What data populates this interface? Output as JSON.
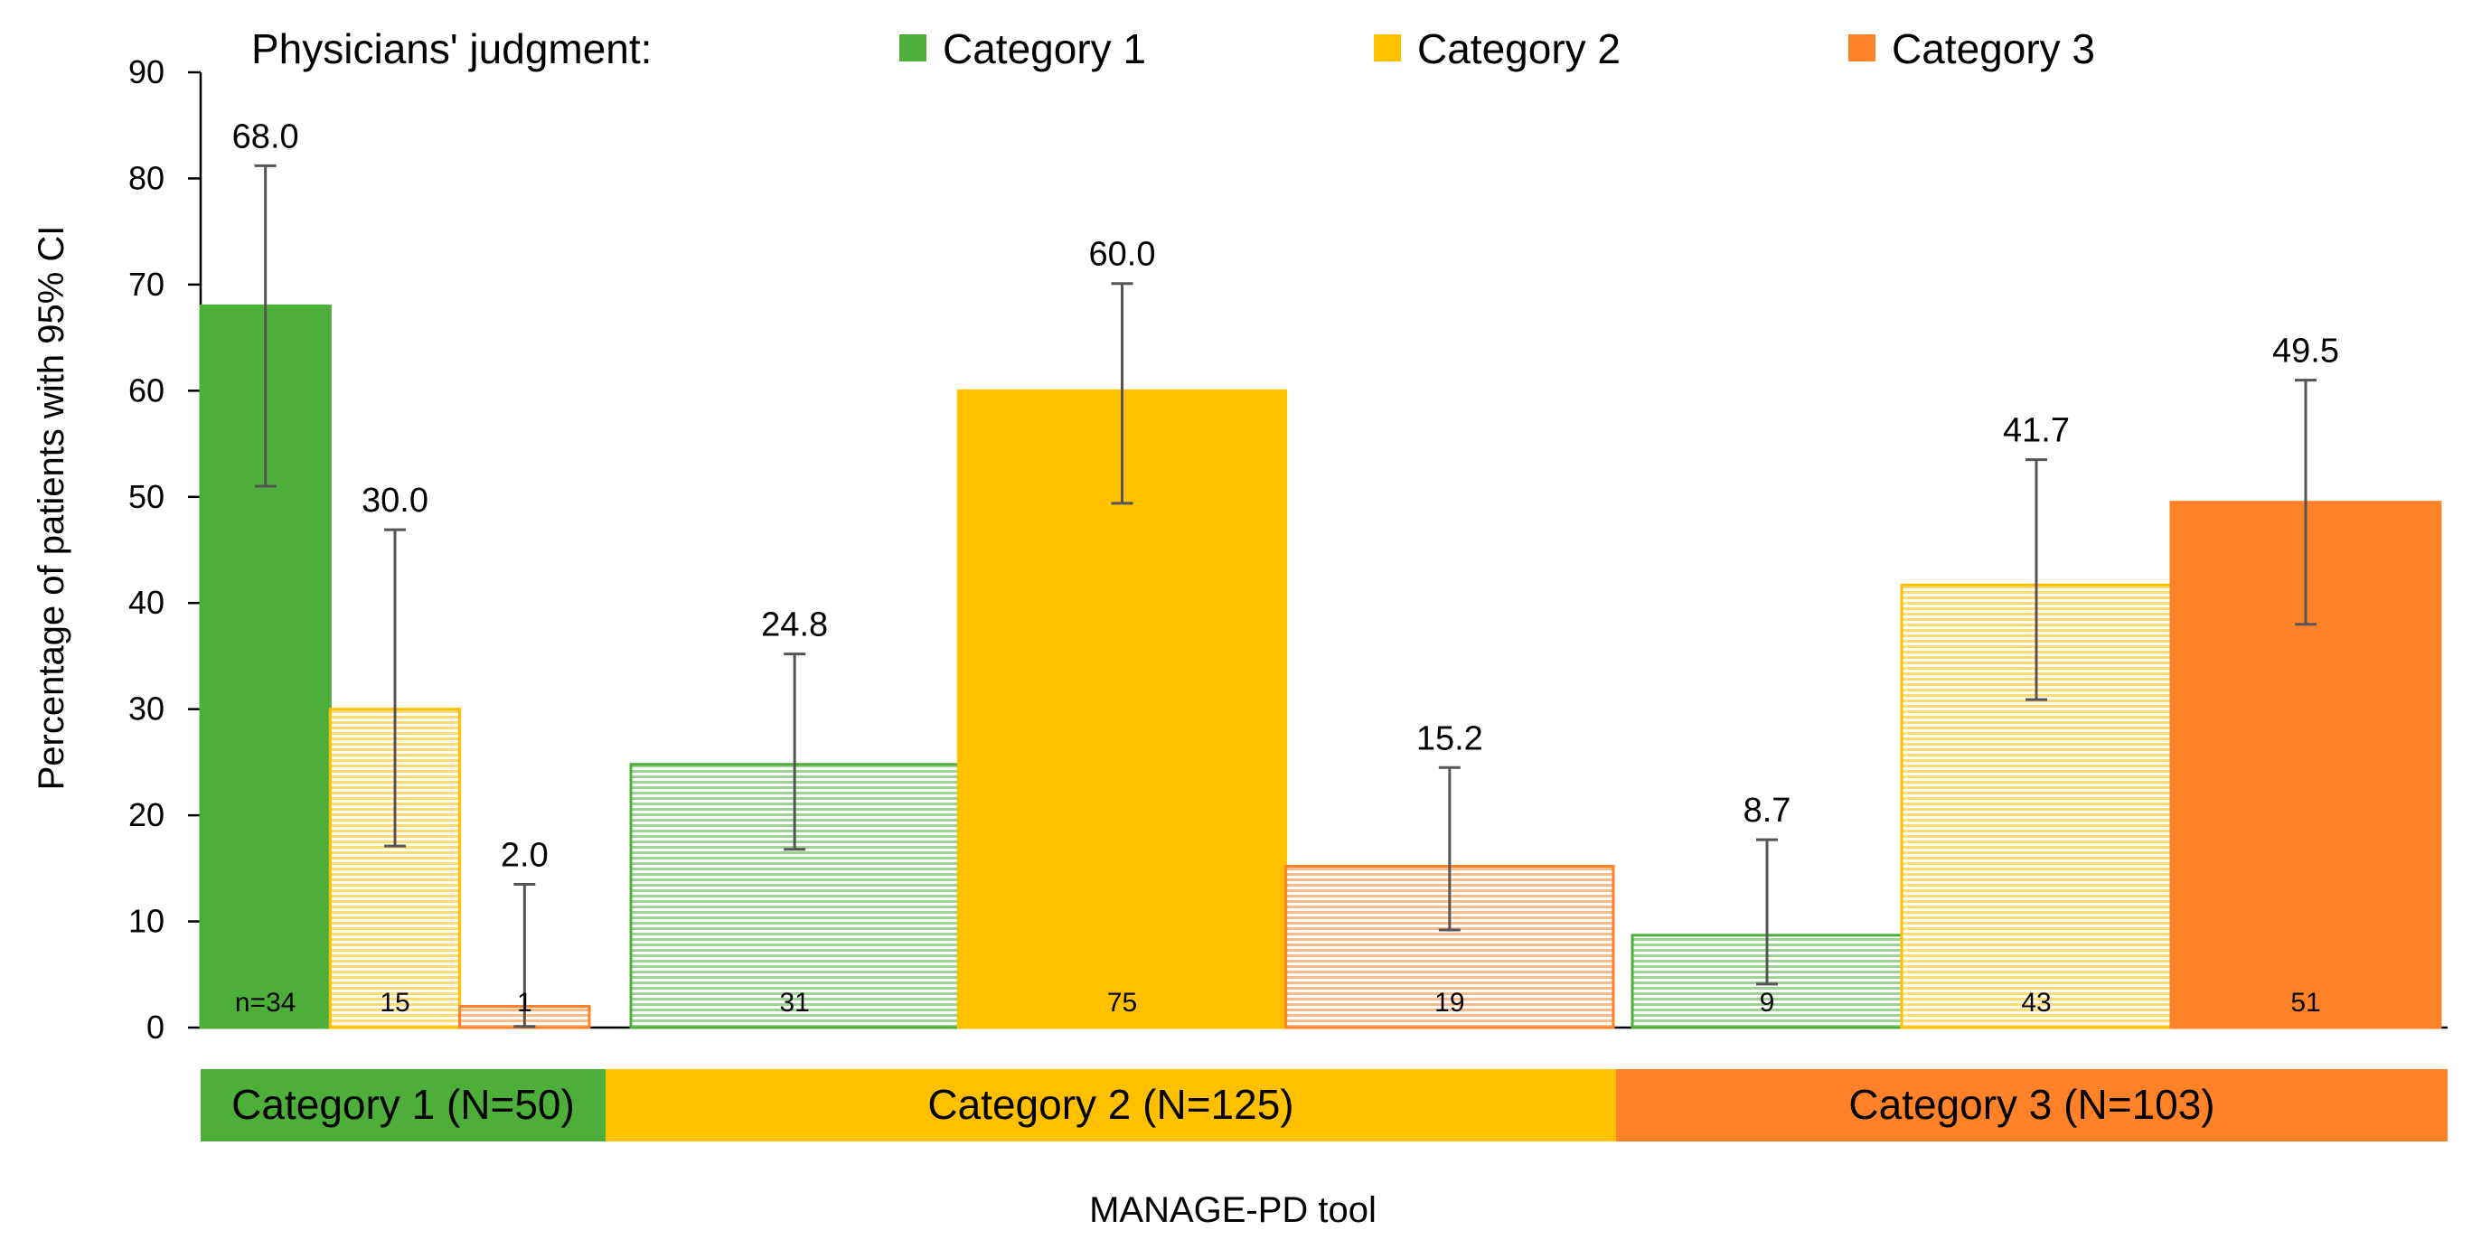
{
  "chart_data": {
    "type": "bar",
    "ylabel": "Percentage of patients with 95% CI",
    "xlabel": "MANAGE-PD tool",
    "ylim": [
      0,
      90
    ],
    "y_ticks": [
      0,
      10,
      20,
      30,
      40,
      50,
      60,
      70,
      80,
      90
    ],
    "legend": {
      "title": "Physicians' judgment:",
      "placement": "top",
      "items": [
        {
          "label": "Category 1",
          "color": "#4daf3a"
        },
        {
          "label": "Category 2",
          "color": "#ffc000"
        },
        {
          "label": "Category 3",
          "color": "#ff8128"
        }
      ]
    },
    "groups": [
      {
        "label": "Category 1 (N=50)",
        "color": "#4daf3a",
        "bars": [
          {
            "series": "Category 1",
            "value": 68.0,
            "value_label": "68.0",
            "ci": [
              51.0,
              81.2
            ],
            "n_label": "n=34",
            "pattern": "solid"
          },
          {
            "series": "Category 2",
            "value": 30.0,
            "value_label": "30.0",
            "ci": [
              17.1,
              46.9
            ],
            "n_label": "15",
            "pattern": "striped"
          },
          {
            "series": "Category 3",
            "value": 2.0,
            "value_label": "2.0",
            "ci": [
              0.1,
              13.5
            ],
            "n_label": "1",
            "pattern": "striped"
          }
        ]
      },
      {
        "label": "Category 2 (N=125)",
        "color": "#ffc000",
        "bars": [
          {
            "series": "Category 1",
            "value": 24.8,
            "value_label": "24.8",
            "ci": [
              16.8,
              35.2
            ],
            "n_label": "31",
            "pattern": "striped"
          },
          {
            "series": "Category 2",
            "value": 60.0,
            "value_label": "60.0",
            "ci": [
              49.4,
              70.1
            ],
            "n_label": "75",
            "pattern": "solid"
          },
          {
            "series": "Category 3",
            "value": 15.2,
            "value_label": "15.2",
            "ci": [
              9.2,
              24.5
            ],
            "n_label": "19",
            "pattern": "striped"
          }
        ]
      },
      {
        "label": "Category 3 (N=103)",
        "color": "#ff8128",
        "bars": [
          {
            "series": "Category 1",
            "value": 8.7,
            "value_label": "8.7",
            "ci": [
              4.1,
              17.7
            ],
            "n_label": "9",
            "pattern": "striped"
          },
          {
            "series": "Category 2",
            "value": 41.7,
            "value_label": "41.7",
            "ci": [
              30.9,
              53.5
            ],
            "n_label": "43",
            "pattern": "striped"
          },
          {
            "series": "Category 3",
            "value": 49.5,
            "value_label": "49.5",
            "ci": [
              38.0,
              61.0
            ],
            "n_label": "51",
            "pattern": "solid"
          }
        ]
      }
    ]
  }
}
